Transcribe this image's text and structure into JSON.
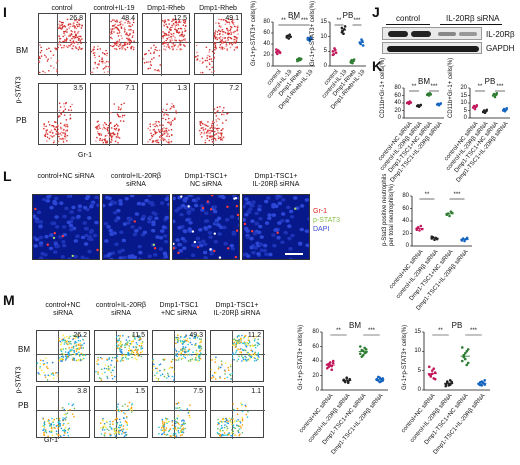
{
  "panels": {
    "I": "I",
    "J": "J",
    "K": "K",
    "L": "L",
    "M": "M"
  },
  "I": {
    "groups": [
      "control",
      "control+IL-19",
      "Dmp1-Rheb",
      "Dmp1-Rheb\n+IL-19"
    ],
    "rows": [
      "BM",
      "PB"
    ],
    "values_bm": [
      "26.8",
      "48.4",
      "12.5",
      "49.1"
    ],
    "values_pb": [
      "3.5",
      "7.1",
      "1.3",
      "7.2"
    ],
    "yaxis": "p-STAT3",
    "xaxis": "Gr-1",
    "chart_bm": {
      "title": "BM",
      "ylabel": "Gr-1+p-STAT3+ cells(%)",
      "ticks": [
        "0",
        "20",
        "40",
        "60",
        "80"
      ],
      "sig": [
        "**",
        "**",
        "***"
      ]
    },
    "chart_pb": {
      "title": "PB",
      "ylabel": "Gr-1+p-STAT3+ cells(%)",
      "ticks": [
        "0",
        "5",
        "10",
        "15"
      ],
      "sig": [
        "**",
        "***"
      ]
    },
    "cats": [
      "control",
      "control+IL-19",
      "Dmp1-Rheb",
      "Dmp1-Rheb+IL-19"
    ]
  },
  "J": {
    "header": "control",
    "header2": "IL-20Rβ siRNA",
    "band1": "IL-20Rβ",
    "band2": "GAPDH"
  },
  "K": {
    "bm": {
      "title": "BM",
      "ylabel": "CD11b+Gr-1+ cells(%)",
      "ticks": [
        "0",
        "20",
        "40",
        "60",
        "80"
      ],
      "sig": [
        "**",
        "***"
      ]
    },
    "pb": {
      "title": "PB",
      "ylabel": "CD11b+Gr-1+ cells(%)",
      "ticks": [
        "0",
        "5",
        "10",
        "15",
        "20"
      ],
      "sig": [
        "**",
        "***"
      ]
    },
    "cats": [
      "control+NC siRNA",
      "control+IL-20Rβ siRNA",
      "Dmp1-TSC1+NC siRNA",
      "Dmp1-TSC1+IL-20Rβ siRNA"
    ]
  },
  "L": {
    "titles": [
      "control+NC siRNA",
      "control+IL-20Rβ\nsiRNA",
      "Dmp1-TSC1+\nNC siRNA",
      "Dmp1-TSC1+\nIL-20Rβ siRNA"
    ],
    "legend": [
      "Gr-1",
      "p-STAT3",
      "DAPI"
    ],
    "legend_colors": [
      "#e02020",
      "#8bc34a",
      "#3a4fd0"
    ],
    "chart": {
      "ylabel": "p-Stat3 positive neutrophils\nper total neutrophils(%)",
      "ticks": [
        "0",
        "20",
        "40",
        "60",
        "80"
      ],
      "sig": [
        "**",
        "***"
      ]
    },
    "cats": [
      "control+NC siRNA",
      "control+IL-20Rβ siRNA",
      "Dmp1-TSC1+NC siRNA",
      "Dmp1-TSC1+IL-20Rβ siRNA"
    ]
  },
  "M": {
    "groups": [
      "control+NC\nsiRNA",
      "control+IL-20Rβ\nsiRNA",
      "Dmp1-TSC1\n+NC siRNA",
      "Dmp1-TSC1+\nIL-20Rβ siRNA"
    ],
    "rows": [
      "BM",
      "PB"
    ],
    "values_bm": [
      "26.2",
      "11.5",
      "49.3",
      "11.2"
    ],
    "values_pb": [
      "3.8",
      "1.5",
      "7.5",
      "1.1"
    ],
    "yaxis": "p-STAT3",
    "xaxis": "Gr-1",
    "chart_bm": {
      "title": "BM",
      "ylabel": "Gr-1+p-STAT3+ cells(%)",
      "ticks": [
        "0",
        "20",
        "40",
        "60",
        "80"
      ],
      "sig": [
        "**",
        "***"
      ]
    },
    "chart_pb": {
      "title": "PB",
      "ylabel": "Gr-1+p-STAT3+ cells(%)",
      "ticks": [
        "0",
        "5",
        "10",
        "15"
      ],
      "sig": [
        "**",
        "***"
      ]
    },
    "cats": [
      "control+NC siRNA",
      "control+IL-20Rβ siRNA",
      "Dmp1-TSC1+NC siRNA",
      "Dmp1-TSC1+IL-20Rβ siRNA"
    ]
  },
  "chart_data": [
    {
      "type": "scatter",
      "title": "BM",
      "ylabel": "Gr-1+p-STAT3+ cells(%)",
      "ylim": [
        0,
        80
      ],
      "categories": [
        "control",
        "control+IL-19",
        "Dmp1-Rheb",
        "Dmp1-Rheb+IL-19"
      ],
      "series": [
        {
          "values": [
            [
              25,
              22,
              28,
              26,
              24,
              30
            ],
            [
              52,
              55,
              50,
              57,
              53,
              54
            ],
            [
              12,
              10,
              14,
              11,
              13,
              9
            ],
            [
              48,
              50,
              46,
              52,
              49,
              51
            ]
          ]
        }
      ],
      "colors": [
        "#c2185b",
        "#222222",
        "#2e7d32",
        "#1565c0"
      ]
    },
    {
      "type": "scatter",
      "title": "PB",
      "ylabel": "Gr-1+p-STAT3+ cells(%)",
      "ylim": [
        0,
        15
      ],
      "categories": [
        "control",
        "control+IL-19",
        "Dmp1-Rheb",
        "Dmp1-Rheb+IL-19"
      ],
      "series": [
        {
          "values": [
            [
              5,
              4,
              6,
              5.5,
              4.5,
              3.8
            ],
            [
              13,
              12,
              11,
              12.5,
              13.5,
              11.5
            ],
            [
              1.5,
              2,
              1,
              1.8,
              2.2,
              1.2
            ],
            [
              8,
              7.5,
              9,
              8.5,
              7,
              8
            ]
          ]
        }
      ],
      "colors": [
        "#c2185b",
        "#222222",
        "#2e7d32",
        "#1565c0"
      ]
    },
    {
      "type": "scatter",
      "title": "BM",
      "ylabel": "CD11b+Gr-1+ cells(%)",
      "ylim": [
        0,
        80
      ],
      "categories": [
        "control+NC siRNA",
        "control+IL-20Rβ siRNA",
        "Dmp1-TSC1+NC siRNA",
        "Dmp1-TSC1+IL-20Rβ siRNA"
      ],
      "series": [
        {
          "values": [
            [
              40,
              42,
              38,
              44,
              41
            ],
            [
              32,
              34,
              30,
              33,
              35
            ],
            [
              62,
              65,
              60,
              66,
              63
            ],
            [
              36,
              38,
              34,
              37,
              39
            ]
          ]
        }
      ],
      "colors": [
        "#c2185b",
        "#222222",
        "#2e7d32",
        "#1565c0"
      ]
    },
    {
      "type": "scatter",
      "title": "PB",
      "ylabel": "CD11b+Gr-1+ cells(%)",
      "ylim": [
        0,
        20
      ],
      "categories": [
        "control+NC siRNA",
        "control+IL-20Rβ siRNA",
        "Dmp1-TSC1+NC siRNA",
        "Dmp1-TSC1+IL-20Rβ siRNA"
      ],
      "series": [
        {
          "values": [
            [
              7,
              8,
              6,
              7.5,
              8.5
            ],
            [
              4,
              5,
              3.5,
              4.5,
              5.5
            ],
            [
              15,
              16,
              14,
              15.5,
              16.5
            ],
            [
              5,
              6,
              4.5,
              5.5,
              6.5
            ]
          ]
        }
      ],
      "colors": [
        "#c2185b",
        "#222222",
        "#2e7d32",
        "#1565c0"
      ]
    },
    {
      "type": "scatter",
      "ylabel": "p-Stat3 positive neutrophils per total neutrophils(%)",
      "ylim": [
        0,
        80
      ],
      "categories": [
        "control+NC siRNA",
        "control+IL-20Rβ siRNA",
        "Dmp1-TSC1+NC siRNA",
        "Dmp1-TSC1+IL-20Rβ siRNA"
      ],
      "series": [
        {
          "values": [
            [
              28,
              30,
              25,
              32,
              27,
              26
            ],
            [
              12,
              14,
              10,
              13,
              11,
              15
            ],
            [
              50,
              52,
              48,
              55,
              53,
              51
            ],
            [
              10,
              12,
              8,
              11,
              13,
              9
            ]
          ]
        }
      ],
      "colors": [
        "#c2185b",
        "#222222",
        "#2e7d32",
        "#1565c0"
      ]
    },
    {
      "type": "scatter",
      "title": "BM",
      "ylabel": "Gr-1+p-STAT3+ cells(%)",
      "ylim": [
        0,
        80
      ],
      "categories": [
        "control+NC siRNA",
        "control+IL-20Rβ siRNA",
        "Dmp1-TSC1+NC siRNA",
        "Dmp1-TSC1+IL-20Rβ siRNA"
      ],
      "series": [
        {
          "values": [
            [
              35,
              32,
              38,
              28,
              40,
              30,
              36,
              34,
              33,
              37
            ],
            [
              14,
              12,
              16,
              10,
              15,
              13,
              11,
              17,
              12,
              14
            ],
            [
              50,
              55,
              48,
              58,
              52,
              60,
              46,
              54,
              51,
              56
            ],
            [
              15,
              13,
              17,
              12,
              16,
              14,
              18,
              11,
              15,
              13
            ]
          ]
        }
      ],
      "colors": [
        "#c2185b",
        "#222222",
        "#2e7d32",
        "#1565c0"
      ]
    },
    {
      "type": "scatter",
      "title": "PB",
      "ylabel": "Gr-1+p-STAT3+ cells(%)",
      "ylim": [
        0,
        15
      ],
      "categories": [
        "control+NC siRNA",
        "control+IL-20Rβ siRNA",
        "Dmp1-TSC1+NC siRNA",
        "Dmp1-TSC1+IL-20Rβ siRNA"
      ],
      "series": [
        {
          "values": [
            [
              4,
              3.5,
              5,
              3,
              4.5,
              6,
              3.8,
              4.2,
              5.5,
              2.8
            ],
            [
              1.5,
              2,
              1.2,
              2.5,
              1.8,
              1,
              2.2,
              1.6,
              1.4,
              2.1
            ],
            [
              7.5,
              9,
              8,
              10,
              7,
              11,
              8.5,
              9.5,
              6.5,
              10.5
            ],
            [
              1.5,
              2,
              1.2,
              1.8,
              2.5,
              1.6,
              1.3,
              2.2,
              1.9,
              1.4
            ]
          ]
        }
      ],
      "colors": [
        "#c2185b",
        "#222222",
        "#2e7d32",
        "#1565c0"
      ]
    }
  ]
}
